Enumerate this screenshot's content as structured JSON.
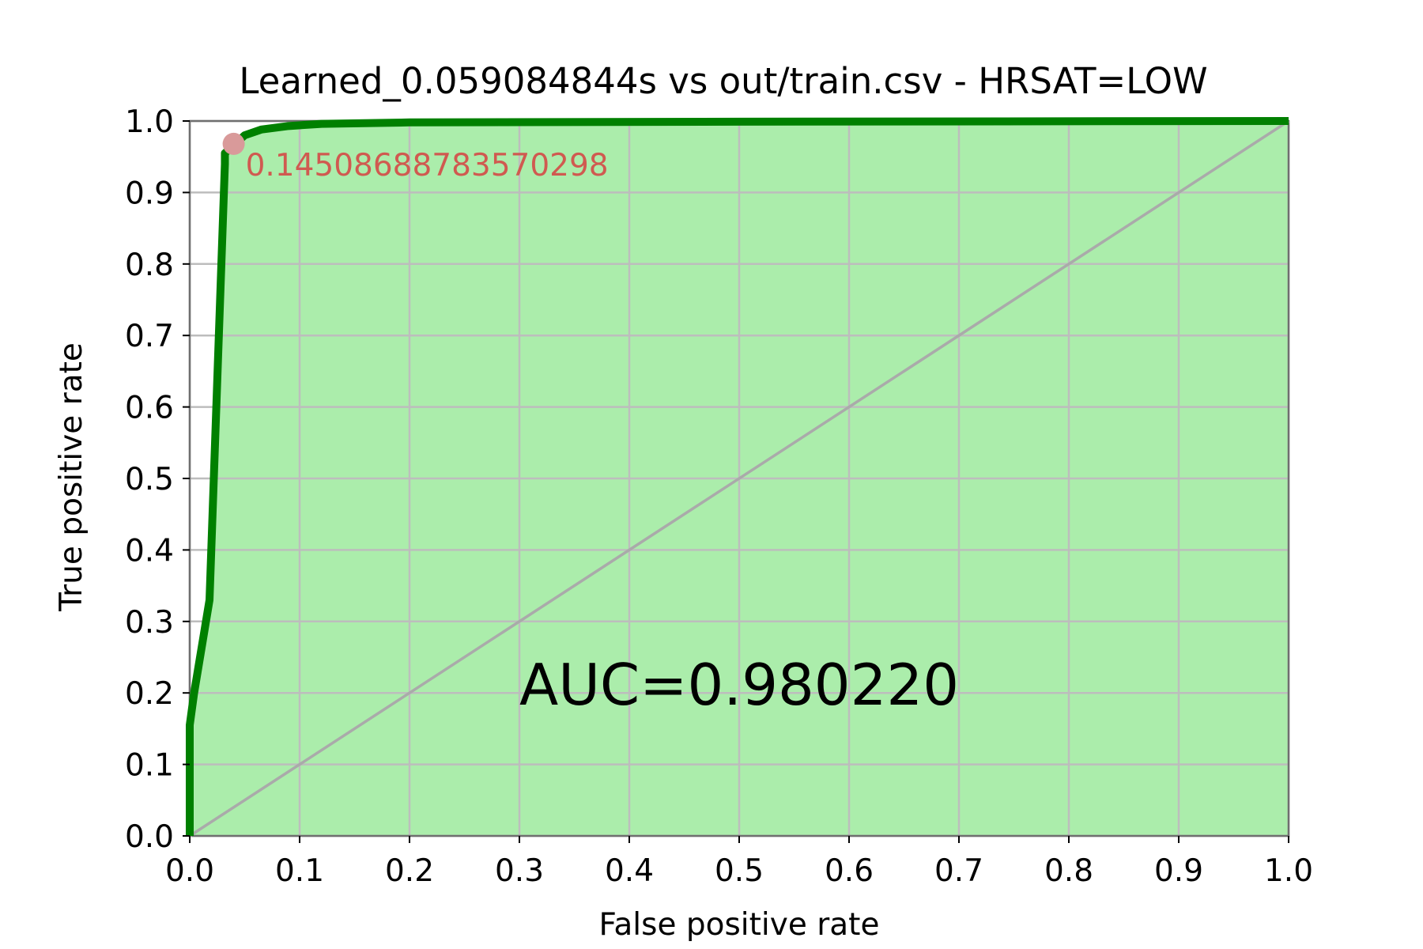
{
  "chart_data": {
    "type": "line",
    "title": "Learned_0.059084844s vs out/train.csv - HRSAT=LOW",
    "xlabel": "False positive rate",
    "ylabel": "True positive rate",
    "xlim": [
      0,
      1
    ],
    "ylim": [
      0,
      1
    ],
    "xticks": [
      "0.0",
      "0.1",
      "0.2",
      "0.3",
      "0.4",
      "0.5",
      "0.6",
      "0.7",
      "0.8",
      "0.9",
      "1.0"
    ],
    "yticks": [
      "0.0",
      "0.1",
      "0.2",
      "0.3",
      "0.4",
      "0.5",
      "0.6",
      "0.7",
      "0.8",
      "0.9",
      "1.0"
    ],
    "grid": true,
    "series": [
      {
        "x": [
          0,
          0,
          0.004,
          0.018,
          0.032,
          0.032,
          0.05,
          0.065,
          0.09,
          0.12,
          0.2,
          0.5,
          1.0
        ],
        "y": [
          0,
          0.155,
          0.2,
          0.33,
          0.94,
          0.955,
          0.98,
          0.988,
          0.993,
          0.996,
          0.998,
          0.999,
          1.0
        ],
        "color": "#008000",
        "fill": "#abedab"
      }
    ],
    "diagonal": {
      "x": [
        0,
        1
      ],
      "y": [
        0,
        1
      ],
      "color": "#aaaaaa"
    },
    "annotation": {
      "x": 0.04,
      "y": 0.968,
      "label": "0.14508688783570298",
      "marker_color": "#d99a9a",
      "text_color": "#d05a50"
    },
    "auc_text": "AUC=0.980220"
  }
}
